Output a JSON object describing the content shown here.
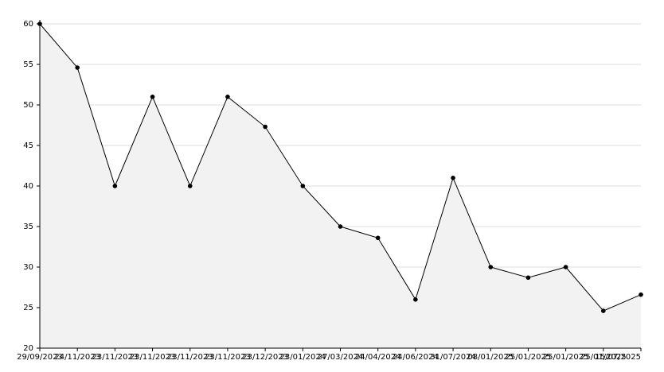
{
  "chart_data": {
    "type": "area",
    "categories": [
      "29/09/2023",
      "24/11/2023",
      "23/11/2023",
      "23/11/2023",
      "23/11/2023",
      "23/11/2023",
      "23/12/2023",
      "23/01/2024",
      "27/03/2024",
      "24/04/2024",
      "24/06/2024",
      "31/07/2024",
      "08/01/2025",
      "25/01/2025",
      "25/01/2025",
      "25/01/2025",
      "15/07/2025"
    ],
    "values": [
      60,
      54.6,
      40,
      51,
      40,
      51,
      47.3,
      40,
      35,
      33.6,
      26,
      41,
      30,
      28.7,
      30,
      24.6,
      26.6
    ],
    "color": "#000000",
    "fill": "#f2f2f2",
    "ylim": [
      20,
      60
    ],
    "yticks": [
      20,
      25,
      30,
      35,
      40,
      45,
      50,
      55,
      60
    ],
    "grid": true
  }
}
